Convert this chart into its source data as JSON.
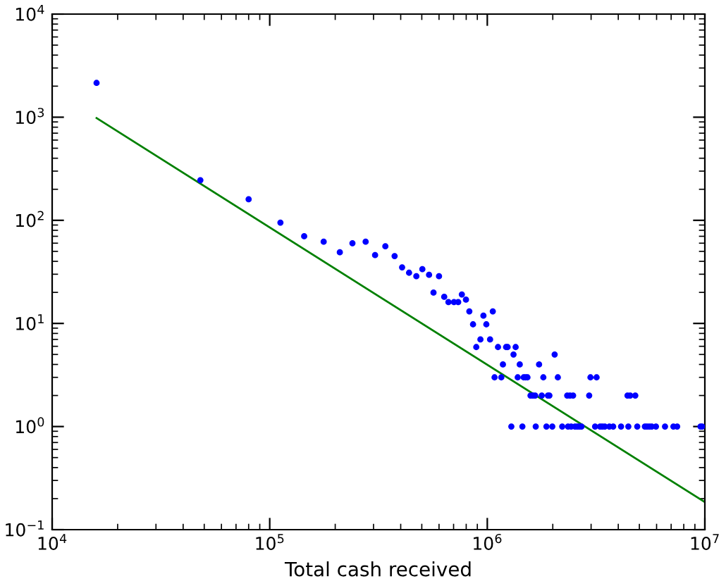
{
  "chart_data": {
    "type": "scatter",
    "xlabel": "Total cash received",
    "log": "xy",
    "grid": false,
    "marker": "circle",
    "xlim": [
      10000,
      10000000
    ],
    "ylim": [
      0.1,
      10000
    ],
    "xticks": [
      {
        "value": 10000,
        "label": "10$^{4}$"
      },
      {
        "value": 100000,
        "label": "10$^{5}$"
      },
      {
        "value": 1000000,
        "label": "10$^{6}$"
      },
      {
        "value": 10000000,
        "label": "10$^{7}$"
      }
    ],
    "yticks": [
      {
        "value": 0.1,
        "label": "10$^{−1}$"
      },
      {
        "value": 1,
        "label": "10$^{0}$"
      },
      {
        "value": 10,
        "label": "10$^{1}$"
      },
      {
        "value": 100,
        "label": "10$^{2}$"
      },
      {
        "value": 1000,
        "label": "10$^{3}$"
      },
      {
        "value": 10000,
        "label": "10$^{4}$"
      }
    ],
    "series": [
      {
        "color": "#0000ff",
        "x": [
          16000,
          48000,
          80000,
          112000,
          144000,
          177000,
          210000,
          240000,
          276000,
          305000,
          340000,
          375000,
          406000,
          437000,
          472000,
          503000,
          540000,
          600000,
          566000,
          634000,
          663000,
          703000,
          735000,
          764000,
          798000,
          827000,
          860000,
          960000,
          990000,
          1060000,
          890000,
          930000,
          1030000,
          1120000,
          1220000,
          1240000,
          1350000,
          1320000,
          1180000,
          1410000,
          1730000,
          2040000,
          1080000,
          1160000,
          1380000,
          1470000,
          1500000,
          1530000,
          1810000,
          2110000,
          2980000,
          3180000,
          1580000,
          1620000,
          1660000,
          1780000,
          1900000,
          1930000,
          2330000,
          2400000,
          2480000,
          2940000,
          4410000,
          4540000,
          4790000,
          1290000,
          1450000,
          1670000,
          1870000,
          1990000,
          2210000,
          2350000,
          2430000,
          2530000,
          2590000,
          2650000,
          2710000,
          3130000,
          3300000,
          3380000,
          3470000,
          3640000,
          3790000,
          4120000,
          4450000,
          4890000,
          5300000,
          5420000,
          5560000,
          5700000,
          5960000,
          6560000,
          7170000,
          7460000,
          9550000,
          9720000
        ],
        "values": [
          2150,
          245,
          160,
          95,
          70,
          62,
          49,
          60,
          62,
          46,
          56,
          45,
          35,
          31,
          28.7,
          33.6,
          29.6,
          28.7,
          19.9,
          18.1,
          16.1,
          16.1,
          16.1,
          19.1,
          17,
          13.1,
          9.8,
          11.9,
          9.8,
          13.1,
          5.9,
          7,
          7,
          5.9,
          5.9,
          5.9,
          5.9,
          5,
          4,
          4,
          4,
          5,
          3,
          3,
          3,
          3,
          3,
          3,
          3,
          3,
          3,
          3,
          2,
          2,
          2,
          2,
          2,
          2,
          2,
          2,
          2,
          2,
          2,
          2,
          2,
          1,
          1,
          1,
          1,
          1,
          1,
          1,
          1,
          1,
          1,
          1,
          1,
          1,
          1,
          1,
          1,
          1,
          1,
          1,
          1,
          1,
          1,
          1,
          1,
          1,
          1,
          1,
          1,
          1,
          1,
          1
        ]
      },
      {
        "type": "line",
        "marker": "none",
        "color": "#008000",
        "x": [
          16000,
          10000000
        ],
        "values": [
          980,
          0.185
        ]
      }
    ]
  }
}
